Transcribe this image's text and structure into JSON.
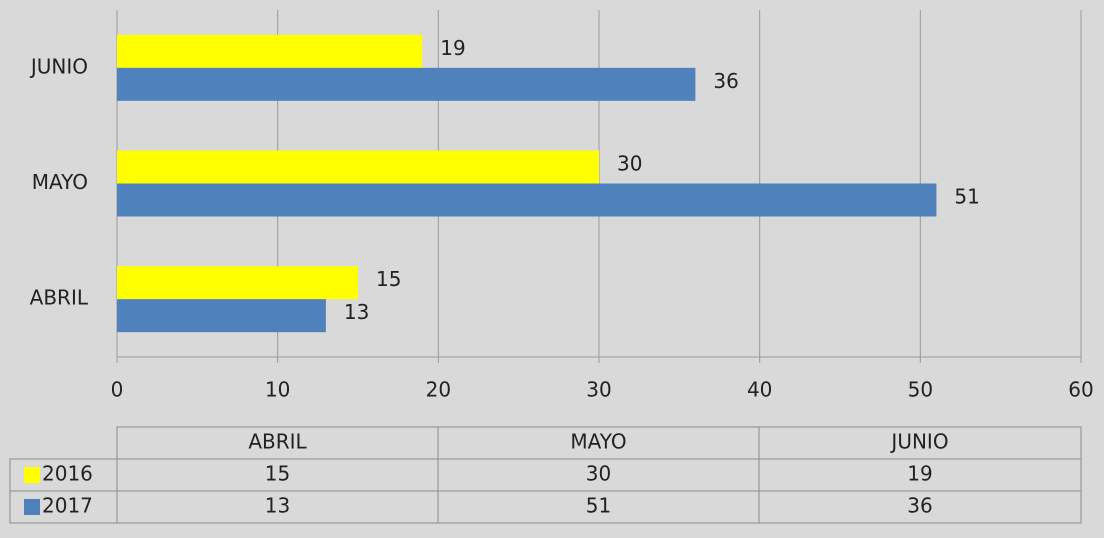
{
  "chart_data": {
    "type": "barh",
    "categories": [
      "ABRIL",
      "MAYO",
      "JUNIO"
    ],
    "series": [
      {
        "name": "2016",
        "color": "#ffff00",
        "values": [
          15,
          30,
          19
        ]
      },
      {
        "name": "2017",
        "color": "#4f81bd",
        "values": [
          13,
          51,
          36
        ]
      }
    ],
    "xlim": [
      0,
      60
    ],
    "xticks": [
      0,
      10,
      20,
      30,
      40,
      50,
      60
    ],
    "grid": true,
    "data_table": true
  }
}
